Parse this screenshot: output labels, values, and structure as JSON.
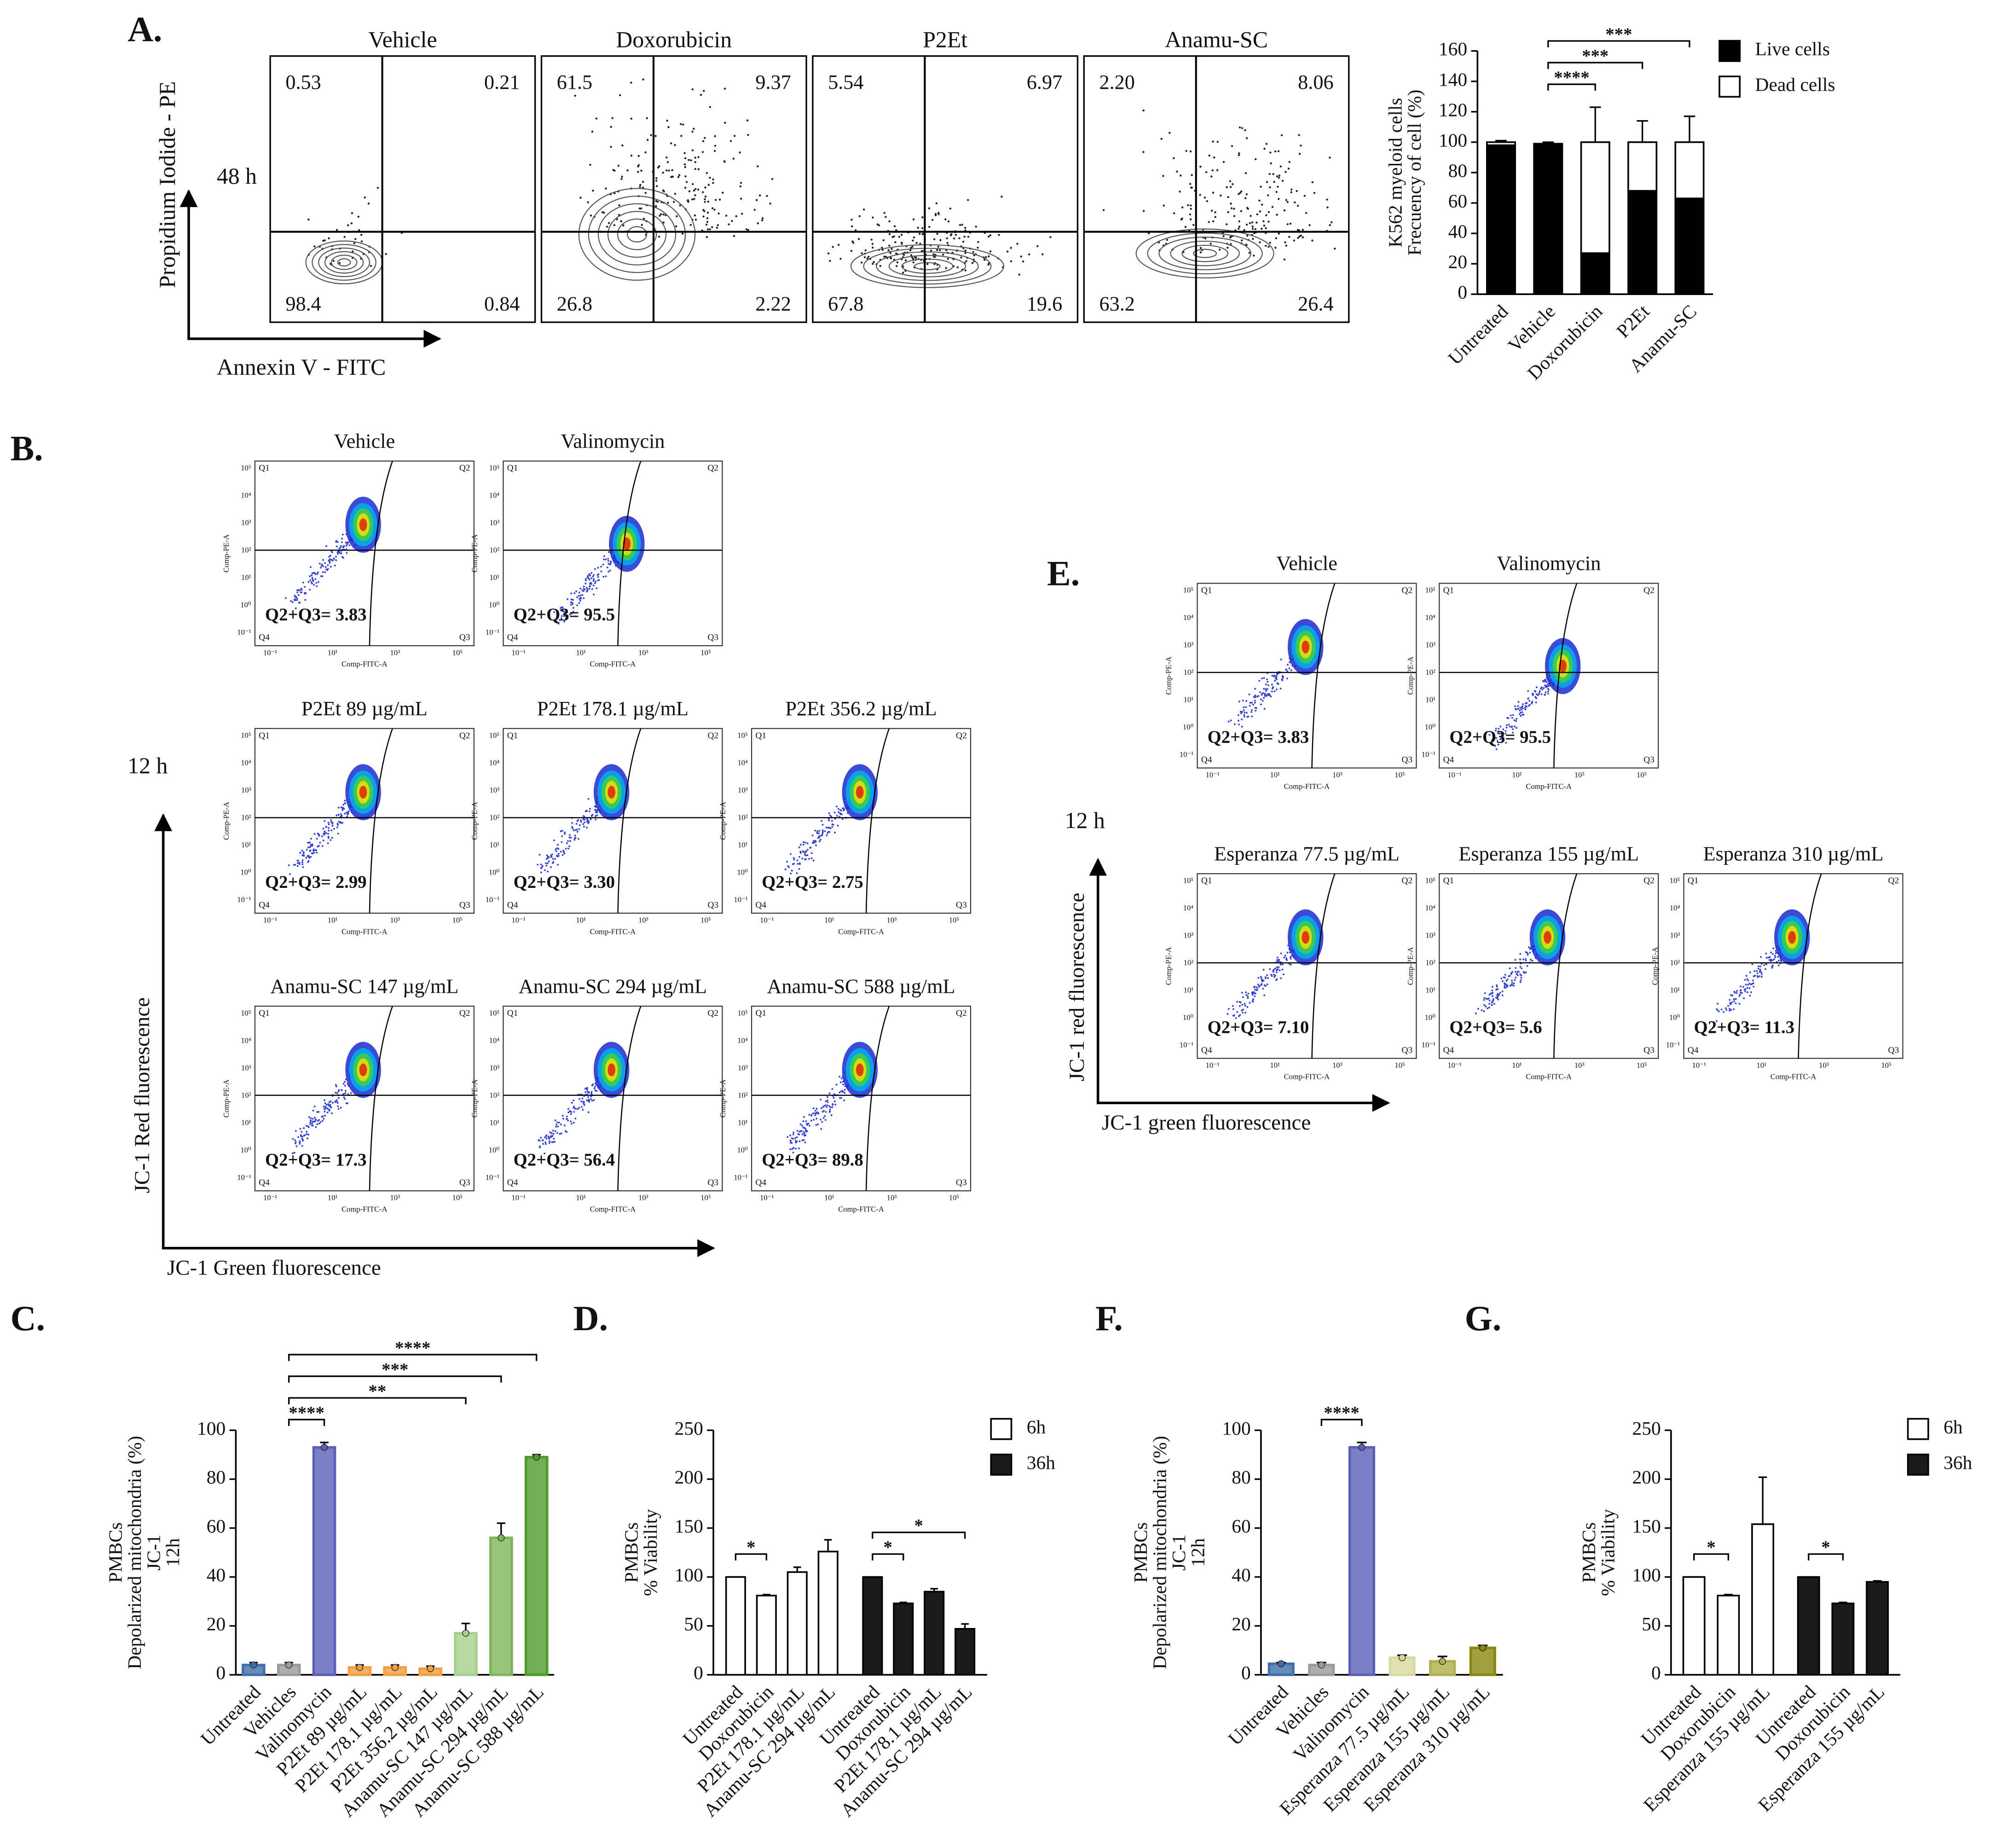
{
  "panel_labels": [
    "A.",
    "B.",
    "C.",
    "D.",
    "E.",
    "F.",
    "G."
  ],
  "flow_a": {
    "time": "48 h",
    "y_label": "Propidium Iodide - PE",
    "x_label": "Annexin V - FITC",
    "plots": [
      {
        "title": "Vehicle",
        "quadrants": [
          "0.53",
          "0.21",
          "98.4",
          "0.84"
        ]
      },
      {
        "title": "Doxorubicin",
        "quadrants": [
          "61.5",
          "9.37",
          "26.8",
          "2.22"
        ]
      },
      {
        "title": "P2Et",
        "quadrants": [
          "5.54",
          "6.97",
          "67.8",
          "19.6"
        ]
      },
      {
        "title": "Anamu-SC",
        "quadrants": [
          "2.20",
          "8.06",
          "63.2",
          "26.4"
        ]
      }
    ]
  },
  "flow_b": {
    "time": "12 h",
    "y_label": "JC-1 Red fluorescence",
    "x_label": "JC-1 Green fluorescence",
    "axis_y": "Comp-PE-A",
    "axis_x": "Comp-FITC-A",
    "quadrant_names": [
      "Q1",
      "Q2",
      "Q3",
      "Q4"
    ],
    "y_ticks": [
      "10⁵",
      "10⁴",
      "10³",
      "10²",
      "10¹",
      "10⁰",
      "10⁻¹"
    ],
    "x_ticks": [
      "10⁻¹",
      "10¹",
      "10³",
      "10⁵"
    ],
    "plots": [
      {
        "title": "Vehicle",
        "stat": "Q2+Q3= 3.83"
      },
      {
        "title": "Valinomycin",
        "stat": "Q2+Q3= 95.5"
      },
      {
        "title": "P2Et 89 µg/mL",
        "stat": "Q2+Q3= 2.99"
      },
      {
        "title": "P2Et 178.1 µg/mL",
        "stat": "Q2+Q3= 3.30"
      },
      {
        "title": "P2Et 356.2 µg/mL",
        "stat": "Q2+Q3= 2.75"
      },
      {
        "title": "Anamu-SC 147 µg/mL",
        "stat": "Q2+Q3= 17.3"
      },
      {
        "title": "Anamu-SC 294 µg/mL",
        "stat": "Q2+Q3= 56.4"
      },
      {
        "title": "Anamu-SC 588 µg/mL",
        "stat": "Q2+Q3= 89.8"
      }
    ]
  },
  "flow_e": {
    "time": "12 h",
    "y_label": "JC-1 red fluorescence",
    "x_label": "JC-1 green fluorescence",
    "axis_y": "Comp-PE-A",
    "axis_x": "Comp-FITC-A",
    "quadrant_names": [
      "Q1",
      "Q2",
      "Q3",
      "Q4"
    ],
    "y_ticks": [
      "10⁵",
      "10⁴",
      "10³",
      "10²",
      "10¹",
      "10⁰",
      "10⁻¹"
    ],
    "x_ticks": [
      "10⁻¹",
      "10¹",
      "10³",
      "10⁵"
    ],
    "plots": [
      {
        "title": "Vehicle",
        "stat": "Q2+Q3= 3.83"
      },
      {
        "title": "Valinomycin",
        "stat": "Q2+Q3= 95.5"
      },
      {
        "title": "Esperanza 77.5 µg/mL",
        "stat": "Q2+Q3= 7.10"
      },
      {
        "title": "Esperanza 155 µg/mL",
        "stat": "Q2+Q3= 5.6"
      },
      {
        "title": "Esperanza 310 µg/mL",
        "stat": "Q2+Q3= 11.3"
      }
    ]
  },
  "chart_data": [
    {
      "type": "bar",
      "stacked": true,
      "ylabel": [
        "K562 myeloid cells",
        "Frecuency of cell (%)"
      ],
      "categories": [
        "Untreated",
        "Vehicle",
        "Doxorubicin",
        "P2Et",
        "Anamu-SC"
      ],
      "series": [
        {
          "name": "Live cells",
          "color": "#000000",
          "values": [
            98,
            98,
            27,
            68,
            63
          ],
          "errors": [
            2,
            1,
            23,
            16,
            18
          ]
        },
        {
          "name": "Dead cells",
          "color": "#ffffff",
          "values": [
            2,
            1,
            73,
            32,
            37
          ],
          "errors": [
            1,
            1,
            23,
            14,
            17
          ]
        }
      ],
      "ylim": [
        0,
        160
      ],
      "yticks": [
        0,
        20,
        40,
        60,
        80,
        100,
        120,
        140,
        160
      ],
      "legend": "right",
      "significance": [
        {
          "from": "Vehicle",
          "to": "Doxorubicin",
          "label": "****"
        },
        {
          "from": "Vehicle",
          "to": "P2Et",
          "label": "***"
        },
        {
          "from": "Vehicle",
          "to": "Anamu-SC",
          "label": "***"
        }
      ]
    },
    {
      "type": "bar",
      "ylabel": [
        "PMBCs",
        "Depolarized mitochondria (%)",
        "JC-1",
        "12h"
      ],
      "categories": [
        "Untreated",
        "Vehicles",
        "Valinomycin",
        "P2Et 89 µg/mL",
        "P2Et 178.1 µg/mL",
        "P2Et 356.2 µg/mL",
        "Anamu-SC 147 µg/mL",
        "Anamu-SC 294 µg/mL",
        "Anamu-SC 588 µg/mL"
      ],
      "values": [
        4,
        4,
        93,
        3,
        3,
        2.5,
        17,
        56,
        89
      ],
      "errors": [
        1,
        1,
        2,
        1,
        1,
        1,
        4,
        6,
        1
      ],
      "colors": [
        "#3f6fa8",
        "#9a9a9a",
        "#5b5fb8",
        "#f0a040",
        "#f0a040",
        "#f0a040",
        "#a8d08d",
        "#7fb55a",
        "#4e9a2a"
      ],
      "ylim": [
        0,
        100
      ],
      "yticks": [
        0,
        20,
        40,
        60,
        80,
        100
      ],
      "significance": [
        {
          "from": "Vehicles",
          "to": "Valinomycin",
          "label": "****"
        },
        {
          "from": "Vehicles",
          "to": "Anamu-SC 147 µg/mL",
          "label": "**"
        },
        {
          "from": "Vehicles",
          "to": "Anamu-SC 294 µg/mL",
          "label": "***"
        },
        {
          "from": "Vehicles",
          "to": "Anamu-SC 588 µg/mL",
          "label": "****"
        }
      ]
    },
    {
      "type": "bar",
      "ylabel": [
        "PMBCs",
        "% Viability"
      ],
      "categories": [
        "Untreated",
        "Doxorubicin",
        "P2Et 178.1 µg/mL",
        "Anamu-SC 294 µg/mL"
      ],
      "series": [
        {
          "name": "6h",
          "color": "#ffffff",
          "values": [
            100,
            81,
            105,
            126
          ],
          "errors": [
            0,
            1,
            5,
            12
          ]
        },
        {
          "name": "36h",
          "color": "#1a1a1a",
          "values": [
            100,
            73,
            85,
            47
          ],
          "errors": [
            0,
            1,
            3,
            5
          ]
        }
      ],
      "ylim": [
        0,
        250
      ],
      "yticks": [
        0,
        50,
        100,
        150,
        200,
        250
      ],
      "legend": "right",
      "significance": [
        {
          "series": "6h",
          "from": "Untreated",
          "to": "Doxorubicin",
          "label": "*"
        },
        {
          "series": "36h",
          "from": "Untreated",
          "to": "Doxorubicin",
          "label": "*"
        },
        {
          "series": "36h",
          "from": "Untreated",
          "to": "Anamu-SC 294 µg/mL",
          "label": "*"
        }
      ]
    },
    {
      "type": "bar",
      "ylabel": [
        "PMBCs",
        "Depolarized mitochondria (%)",
        "JC-1",
        "12h"
      ],
      "categories": [
        "Untreated",
        "Vehicles",
        "Valinomycin",
        "Esperanza 77.5 µg/mL",
        "Esperanza 155 µg/mL",
        "Esperanza 310 µg/mL"
      ],
      "values": [
        4.5,
        4,
        93,
        7,
        5.5,
        11
      ],
      "errors": [
        0.5,
        1,
        2,
        1,
        2,
        1
      ],
      "colors": [
        "#3f6fa8",
        "#9a9a9a",
        "#5b5fb8",
        "#d8d8a0",
        "#b0b050",
        "#888810"
      ],
      "ylim": [
        0,
        100
      ],
      "yticks": [
        0,
        20,
        40,
        60,
        80,
        100
      ],
      "significance": [
        {
          "from": "Vehicles",
          "to": "Valinomycin",
          "label": "****"
        }
      ]
    },
    {
      "type": "bar",
      "ylabel": [
        "PMBCs",
        "% Viability"
      ],
      "categories": [
        "Untreated",
        "Doxorubicin",
        "Esperanza 155 µg/mL"
      ],
      "series": [
        {
          "name": "6h",
          "color": "#ffffff",
          "values": [
            100,
            81,
            154
          ],
          "errors": [
            0,
            1,
            48
          ]
        },
        {
          "name": "36h",
          "color": "#1a1a1a",
          "values": [
            100,
            73,
            95
          ],
          "errors": [
            0,
            1,
            1
          ]
        }
      ],
      "ylim": [
        0,
        250
      ],
      "yticks": [
        0,
        50,
        100,
        150,
        200,
        250
      ],
      "legend": "right",
      "significance": [
        {
          "series": "6h",
          "from": "Untreated",
          "to": "Doxorubicin",
          "label": "*"
        },
        {
          "series": "36h",
          "from": "Untreated",
          "to": "Doxorubicin",
          "label": "*"
        }
      ]
    }
  ]
}
